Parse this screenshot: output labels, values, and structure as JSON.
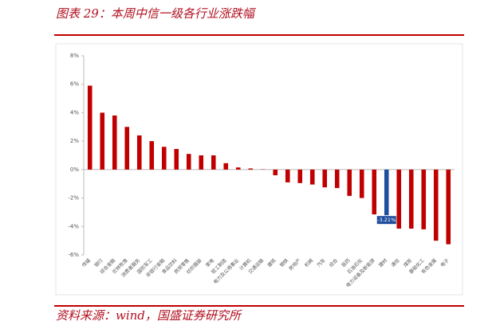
{
  "header": {
    "title": "图表 29：本周中信一级各行业涨跌幅"
  },
  "footer": {
    "source": "资料来源：wind，国盛证券研究所"
  },
  "chart_data": {
    "type": "bar",
    "categories": [
      "传媒",
      "银行",
      "综合金融",
      "农林牧渔",
      "消费者服务",
      "国防军工",
      "非银行金融",
      "食品饮料",
      "商贸零售",
      "纺织服装",
      "家电",
      "轻工制造",
      "电力及公用事业",
      "计算机",
      "交通运输",
      "建筑",
      "钢铁",
      "房地产",
      "机械",
      "汽车",
      "综合",
      "医药",
      "石油石化",
      "电力设备及新能源",
      "建材",
      "通信",
      "煤炭",
      "基础化工",
      "有色金属",
      "电子"
    ],
    "values": [
      5.9,
      4.0,
      3.8,
      3.0,
      2.4,
      2.0,
      1.6,
      1.45,
      1.1,
      1.0,
      1.0,
      0.45,
      0.15,
      0.08,
      0.02,
      -0.4,
      -0.9,
      -0.95,
      -1.05,
      -1.25,
      -1.3,
      -1.85,
      -2.0,
      -3.15,
      -3.21,
      -4.15,
      -4.15,
      -4.2,
      -5.0,
      -5.25
    ],
    "value_labels": [
      null,
      null,
      null,
      null,
      null,
      null,
      null,
      null,
      null,
      null,
      null,
      null,
      null,
      null,
      null,
      null,
      null,
      null,
      null,
      null,
      null,
      null,
      null,
      null,
      "-3.21%",
      null,
      null,
      null,
      null,
      null
    ],
    "colors": [
      "#c00000",
      "#c00000",
      "#c00000",
      "#c00000",
      "#c00000",
      "#c00000",
      "#c00000",
      "#c00000",
      "#c00000",
      "#c00000",
      "#c00000",
      "#c00000",
      "#c00000",
      "#c00000",
      "#c00000",
      "#c00000",
      "#c00000",
      "#c00000",
      "#c00000",
      "#c00000",
      "#c00000",
      "#c00000",
      "#c00000",
      "#c00000",
      "#1f4e9c",
      "#c00000",
      "#c00000",
      "#c00000",
      "#c00000",
      "#c00000"
    ],
    "ylim": [
      -6,
      8
    ],
    "yticks": [
      {
        "value": -6,
        "label": "-6%"
      },
      {
        "value": -4,
        "label": "-4%"
      },
      {
        "value": -2,
        "label": "-2%"
      },
      {
        "value": 0,
        "label": "0%"
      },
      {
        "value": 2,
        "label": "2%"
      },
      {
        "value": 4,
        "label": "4%"
      },
      {
        "value": 6,
        "label": "6%"
      },
      {
        "value": 8,
        "label": "8%"
      }
    ]
  }
}
